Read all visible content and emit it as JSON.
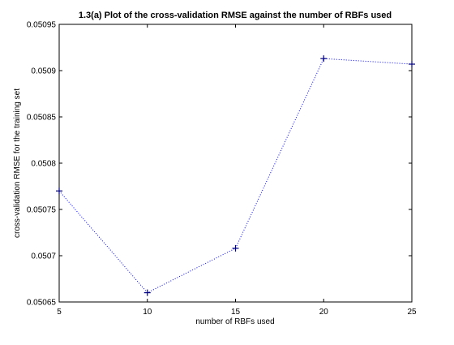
{
  "chart_data": {
    "type": "line",
    "title": "1.3(a)  Plot of the cross-validation RMSE against the number of RBFs used",
    "xlabel": "number of RBFs used",
    "ylabel": "cross-validation RMSE for the training set",
    "xlim": [
      5,
      25
    ],
    "ylim": [
      0.05065,
      0.05095
    ],
    "x_ticks": [
      "5",
      "10",
      "15",
      "20",
      "25"
    ],
    "y_ticks": [
      "0.05065",
      "0.0507",
      "0.05075",
      "0.0508",
      "0.05085",
      "0.0509",
      "0.05095"
    ],
    "grid": false,
    "series": [
      {
        "x": [
          5,
          10,
          15,
          20,
          25
        ],
        "y": [
          0.05077,
          0.05066,
          0.050708,
          0.050913,
          0.050907
        ],
        "line_style": "dotted",
        "marker": "+",
        "color": "#0000ff",
        "marker_color": "#000080"
      }
    ]
  }
}
